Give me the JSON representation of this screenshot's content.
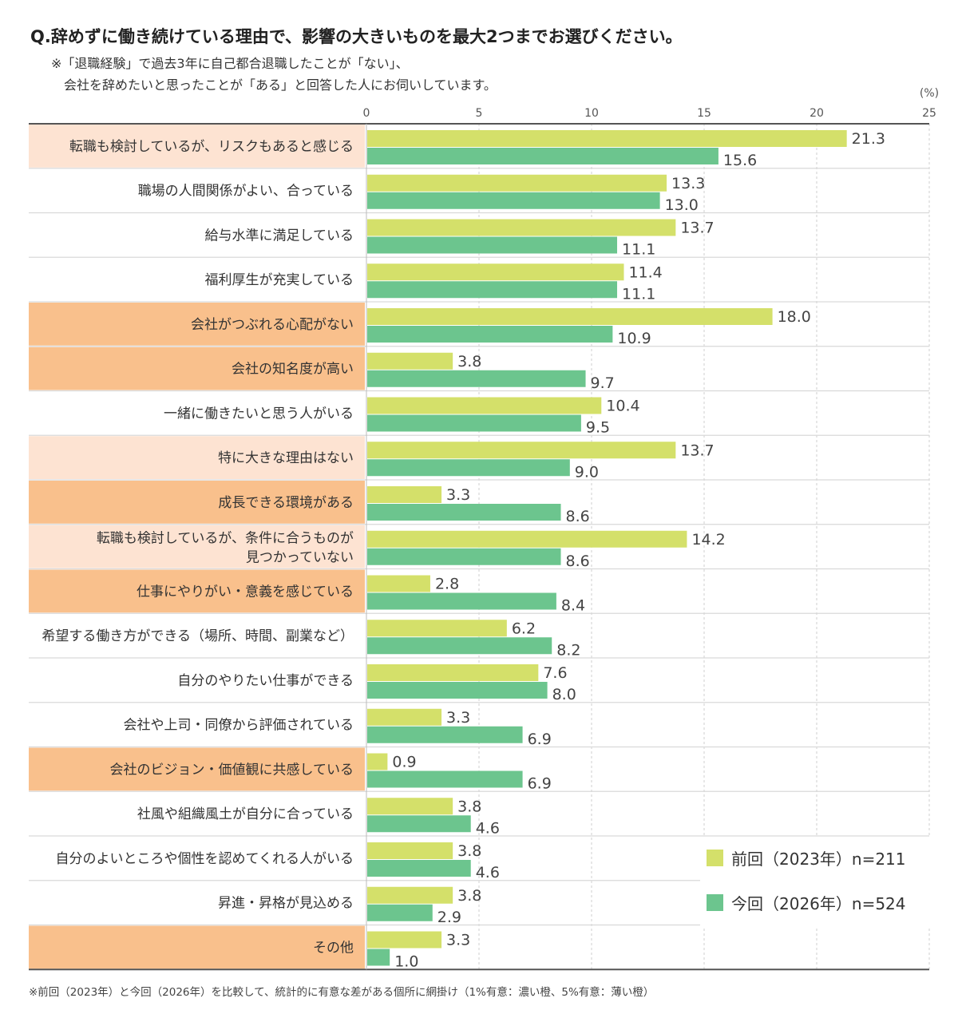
{
  "title": "Q.辞めずに働き続けている理由で、影響の大きいものを最大2つまでお選びください。",
  "note_line1": "※「退職経験」で過去3年に自己都合退職したことが「ない」、",
  "note_line2": "会社を辞めたいと思ったことが「ある」と回答した人にお伺いしています。",
  "footnote": "※前回（2023年）と今回（2026年）を比較して、統計的に有意な差がある個所に網掛け（1%有意：濃い橙、5%有意：薄い橙）",
  "colors": {
    "prev": "#d4e06a",
    "curr": "#6cc58e",
    "sig1": "#f9c08c",
    "sig5": "#fde3d2"
  },
  "chart_data": {
    "type": "bar",
    "orientation": "horizontal",
    "unit": "(%)",
    "xlim": [
      0,
      25
    ],
    "ticks": [
      0,
      5,
      10,
      15,
      20,
      25
    ],
    "grid": true,
    "legend_position": "bottom-right",
    "categories": [
      [
        "転職も検討しているが、リスクもあると感じる"
      ],
      [
        "職場の人間関係がよい、合っている"
      ],
      [
        "給与水準に満足している"
      ],
      [
        "福利厚生が充実している"
      ],
      [
        "会社がつぶれる心配がない"
      ],
      [
        "会社の知名度が高い"
      ],
      [
        "一緒に働きたいと思う人がいる"
      ],
      [
        "特に大きな理由はない"
      ],
      [
        "成長できる環境がある"
      ],
      [
        "転職も検討しているが、条件に合うものが",
        "見つかっていない"
      ],
      [
        "仕事にやりがい・意義を感じている"
      ],
      [
        "希望する働き方ができる（場所、時間、副業など）"
      ],
      [
        "自分のやりたい仕事ができる"
      ],
      [
        "会社や上司・同僚から評価されている"
      ],
      [
        "会社のビジョン・価値観に共感している"
      ],
      [
        "社風や組織風土が自分に合っている"
      ],
      [
        "自分のよいところや個性を認めてくれる人がいる"
      ],
      [
        "昇進・昇格が見込める"
      ],
      [
        "その他"
      ]
    ],
    "significance": [
      "5%",
      "",
      "",
      "",
      "1%",
      "1%",
      "",
      "5%",
      "1%",
      "5%",
      "1%",
      "",
      "",
      "",
      "1%",
      "",
      "",
      "",
      "1%"
    ],
    "series": [
      {
        "name": "前回（2023年）n=211",
        "values": [
          21.3,
          13.3,
          13.7,
          11.4,
          18.0,
          3.8,
          10.4,
          13.7,
          3.3,
          14.2,
          2.8,
          6.2,
          7.6,
          3.3,
          0.9,
          3.8,
          3.8,
          3.8,
          3.3
        ]
      },
      {
        "name": "今回（2026年）n=524",
        "values": [
          15.6,
          13.0,
          11.1,
          11.1,
          10.9,
          9.7,
          9.5,
          9.0,
          8.6,
          8.6,
          8.4,
          8.2,
          8.0,
          6.9,
          6.9,
          4.6,
          4.6,
          2.9,
          1.0
        ]
      }
    ]
  }
}
